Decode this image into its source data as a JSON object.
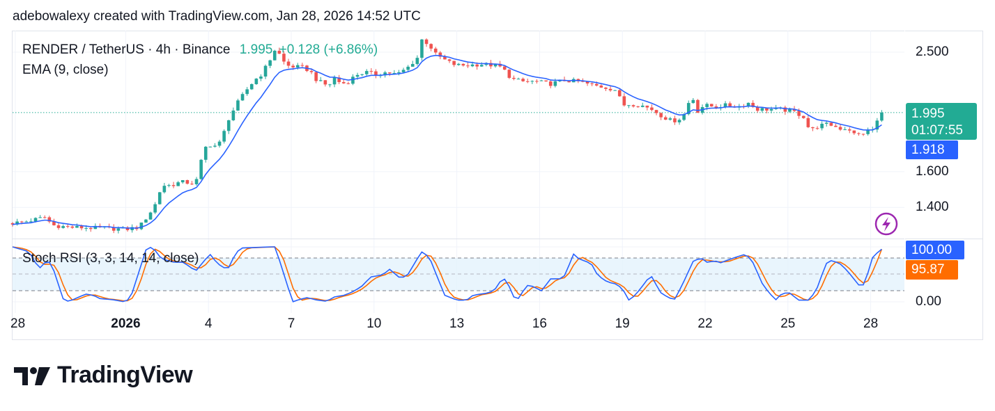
{
  "credit": "adebowalexy created with TradingView.com, Jan 28, 2026 14:52 UTC",
  "legend": {
    "symbol": "RENDER / TetherUS · 4h · Binance",
    "price": "1.995",
    "change": "+0.128 (+6.86%)",
    "ema": "EMA (9, close)",
    "stoch": "Stoch RSI (3, 3, 14, 14, close)"
  },
  "price_axis": {
    "ticks": [
      "2.500",
      "1.600",
      "1.400"
    ],
    "last_price": "1.995",
    "countdown": "01:07:55",
    "ema_value": "1.918"
  },
  "stoch_axis": {
    "k_value": "100.00",
    "d_value": "95.87",
    "zero": "0.00"
  },
  "time_axis": [
    "28",
    "2026",
    "4",
    "7",
    "10",
    "13",
    "16",
    "19",
    "22",
    "25",
    "28"
  ],
  "logo_text": "TradingView",
  "colors": {
    "up": "#26a69a",
    "down": "#ef5350",
    "ema": "#2962ff",
    "stoch_k": "#2962ff",
    "stoch_d": "#ff6d00",
    "last_price": "#22ab94",
    "band": "#e3f2fd",
    "lightning": "#9c27b0"
  },
  "chart_data": {
    "type": "candlestick",
    "title": "RENDER / TetherUS · 4h · Binance",
    "interval": "4h",
    "x_unit": "days since Dec 28, 2025",
    "y_scale": "log",
    "ylim": [
      1.3,
      2.65
    ],
    "last_close": 1.995,
    "close_keyframes": [
      [
        -0.1,
        1.32
      ],
      [
        0.45,
        1.33
      ],
      [
        1.09,
        1.35
      ],
      [
        1.34,
        1.31
      ],
      [
        1.97,
        1.3
      ],
      [
        3.23,
        1.295
      ],
      [
        3.99,
        1.29
      ],
      [
        4.49,
        1.3
      ],
      [
        4.87,
        1.37
      ],
      [
        5.13,
        1.43
      ],
      [
        5.3,
        1.52
      ],
      [
        5.63,
        1.52
      ],
      [
        6.01,
        1.54
      ],
      [
        6.52,
        1.53
      ],
      [
        6.64,
        1.58
      ],
      [
        6.82,
        1.74
      ],
      [
        7.02,
        1.77
      ],
      [
        7.32,
        1.76
      ],
      [
        7.47,
        1.8
      ],
      [
        7.73,
        1.95
      ],
      [
        8.03,
        2.06
      ],
      [
        8.41,
        2.18
      ],
      [
        8.66,
        2.25
      ],
      [
        8.91,
        2.3
      ],
      [
        9.17,
        2.4
      ],
      [
        9.42,
        2.53
      ],
      [
        9.6,
        2.47
      ],
      [
        9.8,
        2.38
      ],
      [
        10.05,
        2.37
      ],
      [
        10.43,
        2.36
      ],
      [
        10.68,
        2.33
      ],
      [
        10.93,
        2.25
      ],
      [
        11.36,
        2.2
      ],
      [
        11.52,
        2.28
      ],
      [
        11.82,
        2.22
      ],
      [
        12.07,
        2.24
      ],
      [
        12.37,
        2.3
      ],
      [
        12.7,
        2.32
      ],
      [
        13.08,
        2.3
      ],
      [
        13.46,
        2.32
      ],
      [
        13.84,
        2.3
      ],
      [
        14.22,
        2.36
      ],
      [
        14.57,
        2.45
      ],
      [
        14.72,
        2.62
      ],
      [
        14.97,
        2.58
      ],
      [
        15.23,
        2.48
      ],
      [
        15.61,
        2.42
      ],
      [
        15.98,
        2.38
      ],
      [
        16.36,
        2.38
      ],
      [
        16.87,
        2.39
      ],
      [
        17.37,
        2.38
      ],
      [
        17.63,
        2.36
      ],
      [
        18.0,
        2.26
      ],
      [
        18.38,
        2.24
      ],
      [
        18.89,
        2.24
      ],
      [
        19.39,
        2.22
      ],
      [
        19.9,
        2.25
      ],
      [
        20.4,
        2.24
      ],
      [
        20.91,
        2.21
      ],
      [
        21.41,
        2.19
      ],
      [
        21.79,
        2.17
      ],
      [
        22.0,
        2.05
      ],
      [
        22.3,
        2.06
      ],
      [
        22.68,
        2.05
      ],
      [
        23.06,
        2.02
      ],
      [
        23.43,
        1.97
      ],
      [
        23.81,
        1.93
      ],
      [
        24.19,
        1.96
      ],
      [
        24.52,
        2.13
      ],
      [
        24.7,
        2.0
      ],
      [
        24.95,
        2.05
      ],
      [
        25.33,
        2.04
      ],
      [
        25.71,
        2.05
      ],
      [
        26.21,
        2.04
      ],
      [
        26.59,
        2.07
      ],
      [
        26.84,
        2.02
      ],
      [
        27.22,
        2.02
      ],
      [
        27.73,
        2.02
      ],
      [
        28.23,
        2.0
      ],
      [
        28.61,
        1.96
      ],
      [
        28.79,
        1.86
      ],
      [
        29.12,
        1.9
      ],
      [
        29.5,
        1.91
      ],
      [
        29.88,
        1.88
      ],
      [
        30.2,
        1.88
      ],
      [
        30.45,
        1.83
      ],
      [
        30.76,
        1.85
      ],
      [
        31.06,
        1.87
      ],
      [
        31.31,
        1.96
      ],
      [
        31.5,
        1.995
      ]
    ],
    "ema": {
      "period": 9,
      "source": "close",
      "last": 1.918
    },
    "stoch_rsi": {
      "params": [
        3,
        3,
        14,
        14
      ],
      "ylim": [
        0,
        100
      ],
      "bands": [
        20,
        50,
        80
      ],
      "k_last": 100.0,
      "d_last": 95.87,
      "k_keyframes": [
        [
          -0.1,
          100
        ],
        [
          0.5,
          91
        ],
        [
          0.86,
          60
        ],
        [
          1.14,
          75
        ],
        [
          1.31,
          70
        ],
        [
          1.77,
          0
        ],
        [
          2.05,
          3
        ],
        [
          2.55,
          14
        ],
        [
          2.83,
          12
        ],
        [
          3.06,
          6
        ],
        [
          3.51,
          4
        ],
        [
          3.96,
          0
        ],
        [
          4.17,
          6
        ],
        [
          4.75,
          97
        ],
        [
          4.97,
          100
        ],
        [
          5.3,
          78
        ],
        [
          5.76,
          72
        ],
        [
          6.09,
          72
        ],
        [
          6.54,
          56
        ],
        [
          7.05,
          87
        ],
        [
          7.32,
          70
        ],
        [
          7.55,
          62
        ],
        [
          7.73,
          62
        ],
        [
          8.0,
          90
        ],
        [
          8.23,
          98
        ],
        [
          9.24,
          100
        ],
        [
          9.42,
          100
        ],
        [
          10.05,
          0
        ],
        [
          10.28,
          4
        ],
        [
          10.61,
          8
        ],
        [
          10.83,
          4
        ],
        [
          11.29,
          1
        ],
        [
          11.57,
          9
        ],
        [
          11.94,
          12
        ],
        [
          12.3,
          20
        ],
        [
          12.63,
          31
        ],
        [
          12.85,
          45
        ],
        [
          13.31,
          49
        ],
        [
          13.59,
          60
        ],
        [
          13.86,
          45
        ],
        [
          14.17,
          45
        ],
        [
          14.72,
          91
        ],
        [
          15.0,
          82
        ],
        [
          15.56,
          12
        ],
        [
          16.01,
          3
        ],
        [
          16.36,
          3
        ],
        [
          16.59,
          12
        ],
        [
          17.12,
          16
        ],
        [
          17.35,
          20
        ],
        [
          17.6,
          39
        ],
        [
          17.78,
          42
        ],
        [
          18.06,
          9
        ],
        [
          18.23,
          6
        ],
        [
          18.54,
          30
        ],
        [
          18.76,
          28
        ],
        [
          19.07,
          20
        ],
        [
          19.42,
          43
        ],
        [
          19.7,
          41
        ],
        [
          19.92,
          48
        ],
        [
          20.23,
          87
        ],
        [
          20.45,
          77
        ],
        [
          20.63,
          75
        ],
        [
          20.88,
          69
        ],
        [
          21.11,
          48
        ],
        [
          21.46,
          36
        ],
        [
          21.82,
          32
        ],
        [
          22.05,
          20
        ],
        [
          22.22,
          3
        ],
        [
          22.45,
          11
        ],
        [
          22.75,
          30
        ],
        [
          23.03,
          49
        ],
        [
          23.38,
          17
        ],
        [
          23.69,
          7
        ],
        [
          23.91,
          5
        ],
        [
          24.22,
          36
        ],
        [
          24.57,
          74
        ],
        [
          24.85,
          80
        ],
        [
          25.1,
          71
        ],
        [
          25.33,
          75
        ],
        [
          25.56,
          71
        ],
        [
          26.04,
          80
        ],
        [
          26.49,
          87
        ],
        [
          26.74,
          71
        ],
        [
          27.1,
          30
        ],
        [
          27.55,
          3
        ],
        [
          27.8,
          16
        ],
        [
          28.08,
          16
        ],
        [
          28.38,
          3
        ],
        [
          28.79,
          3
        ],
        [
          29.09,
          28
        ],
        [
          29.37,
          69
        ],
        [
          29.55,
          75
        ],
        [
          29.85,
          71
        ],
        [
          30.13,
          58
        ],
        [
          30.61,
          28
        ],
        [
          30.78,
          32
        ],
        [
          31.06,
          80
        ],
        [
          31.31,
          93
        ],
        [
          31.54,
          100
        ]
      ]
    }
  }
}
